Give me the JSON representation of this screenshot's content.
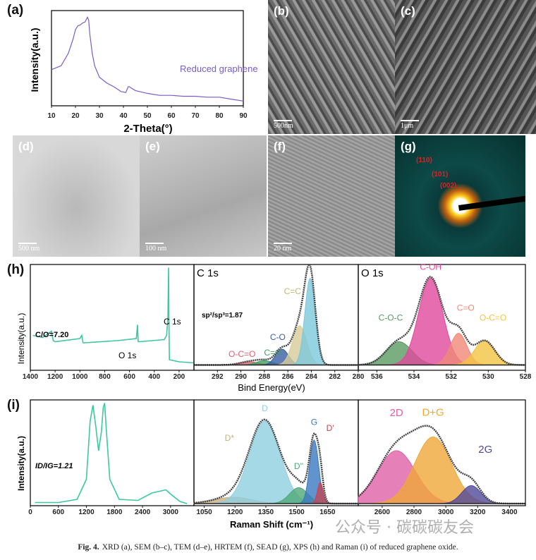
{
  "panels": {
    "a": "(a)",
    "b": "(b)",
    "c": "(c)",
    "d": "(d)",
    "e": "(e)",
    "f": "(f)",
    "g": "(g)",
    "h": "(h)",
    "i": "(i)"
  },
  "scale_bars": {
    "b": "500nm",
    "c": "1μm",
    "d": "500 nm",
    "e": "100 nm",
    "f": "20 nm"
  },
  "saed_labels": [
    "(110)",
    "(101)",
    "(002)"
  ],
  "xps_labels": {
    "c_o_ratio": "C/O=7.20",
    "o1s": "O 1s",
    "c1s": "C 1s",
    "c1s_title": "C 1s",
    "sp_ratio": "sp²/sp³=1.87",
    "o1s_title": "O 1s"
  },
  "raman_labels": {
    "id_ig": "ID/IG=1.21"
  },
  "caption": {
    "label": "Fig. 4.",
    "text": "XRD (a), SEM (b–c), TEM (d–e), HRTEM (f), SEAD (g), XPS (h) and Raman (i) of reduced graphene oxide."
  },
  "watermark": "公众号 · 碳碳碳友会",
  "chart_data": [
    {
      "id": "xrd",
      "type": "line",
      "title": "",
      "xlabel": "2-Theta(°)",
      "ylabel": "Intensity(a.u.)",
      "xlim": [
        10,
        90
      ],
      "ylim": [
        0,
        1
      ],
      "xticks": [
        10,
        20,
        30,
        40,
        50,
        60,
        70,
        80,
        90
      ],
      "legend": "Reduced graphene oxide",
      "color": "#7a5cc8",
      "x": [
        10,
        14,
        17,
        19,
        20,
        21,
        22,
        23,
        24,
        25,
        25.5,
        26,
        27,
        28,
        30,
        33,
        36,
        39,
        41,
        42,
        42.5,
        43,
        45,
        50,
        55,
        60,
        65,
        70,
        75,
        80,
        85,
        90
      ],
      "y": [
        0.38,
        0.42,
        0.55,
        0.7,
        0.8,
        0.84,
        0.85,
        0.87,
        0.88,
        0.93,
        0.9,
        0.75,
        0.55,
        0.42,
        0.3,
        0.24,
        0.2,
        0.15,
        0.14,
        0.2,
        0.2,
        0.19,
        0.16,
        0.13,
        0.11,
        0.11,
        0.1,
        0.1,
        0.09,
        0.09,
        0.07,
        0.05
      ]
    },
    {
      "id": "xps_survey",
      "type": "line",
      "xlabel": "Bind Energy(eV)",
      "ylabel": "Intensity(a.u.)",
      "xlim": [
        1400,
        80
      ],
      "ylim": [
        0,
        1
      ],
      "xticks": [
        1400,
        1200,
        1000,
        800,
        600,
        400,
        200
      ],
      "color": "#3cc8a0",
      "x": [
        1380,
        1300,
        1230,
        1215,
        1200,
        1000,
        985,
        975,
        960,
        700,
        545,
        535,
        530,
        520,
        320,
        300,
        290,
        285,
        282,
        278,
        200,
        80
      ],
      "y": [
        0.33,
        0.31,
        0.37,
        0.28,
        0.27,
        0.3,
        0.33,
        0.26,
        0.26,
        0.28,
        0.3,
        0.43,
        0.27,
        0.27,
        0.29,
        0.33,
        0.5,
        0.97,
        0.5,
        0.1,
        0.08,
        0.07
      ]
    },
    {
      "id": "xps_c1s",
      "type": "area",
      "xlim": [
        294,
        280
      ],
      "ylim": [
        0,
        1
      ],
      "xticks": [
        294,
        292,
        290,
        288,
        286,
        284,
        282,
        280
      ],
      "baseline": 0.05,
      "peaks": [
        {
          "name": "O-C=O",
          "center": 289.3,
          "height": 0.03,
          "width": 0.8,
          "color": "#e06070"
        },
        {
          "name": "C=O",
          "center": 288,
          "height": 0.04,
          "width": 0.7,
          "color": "#40a060"
        },
        {
          "name": "C-O",
          "center": 286.5,
          "height": 0.15,
          "width": 0.55,
          "color": "#3a5ea8"
        },
        {
          "name": "C=C",
          "center": 285,
          "height": 0.37,
          "width": 0.6,
          "color": "#d8cc98"
        },
        {
          "name": "C=C",
          "center": 284.1,
          "height": 0.82,
          "width": 0.45,
          "color": "#7cc8dc"
        }
      ]
    },
    {
      "id": "xps_o1s",
      "type": "area",
      "xlim": [
        537,
        528
      ],
      "ylim": [
        0,
        1
      ],
      "xticks": [
        536,
        534,
        532,
        530,
        528
      ],
      "baseline": 0.05,
      "peaks": [
        {
          "name": "C-O-C",
          "center": 534.8,
          "height": 0.22,
          "width": 0.7,
          "color": "#5a9a60"
        },
        {
          "name": "C-OH",
          "center": 533.1,
          "height": 0.82,
          "width": 0.65,
          "color": "#e0489c"
        },
        {
          "name": "C=O",
          "center": 531.6,
          "height": 0.3,
          "width": 0.45,
          "color": "#f08878"
        },
        {
          "name": "O-C=O",
          "center": 530.2,
          "height": 0.23,
          "width": 0.55,
          "color": "#f2c444"
        }
      ]
    },
    {
      "id": "raman_full",
      "type": "line",
      "xlabel": "Raman Shift (cm⁻¹)",
      "ylabel": "Intensity(a.u.)",
      "xlim": [
        0,
        3500
      ],
      "ylim": [
        0,
        1
      ],
      "xticks": [
        0,
        600,
        1200,
        1800,
        2400,
        3000
      ],
      "color": "#3cc8a0",
      "x": [
        100,
        600,
        1000,
        1200,
        1280,
        1340,
        1400,
        1460,
        1520,
        1560,
        1590,
        1620,
        1700,
        1900,
        2300,
        2600,
        2800,
        2900,
        3000,
        3200,
        3350
      ],
      "y": [
        0.03,
        0.03,
        0.06,
        0.25,
        0.8,
        0.95,
        0.75,
        0.52,
        0.7,
        0.93,
        0.97,
        0.75,
        0.25,
        0.06,
        0.05,
        0.12,
        0.14,
        0.15,
        0.11,
        0.04,
        0.02
      ]
    },
    {
      "id": "raman_first",
      "type": "area",
      "xlim": [
        1000,
        1800
      ],
      "ylim": [
        0,
        1
      ],
      "xticks": [
        1050,
        1200,
        1350,
        1500,
        1650,
        1800
      ],
      "baseline": 0.02,
      "peaks": [
        {
          "name": "D*",
          "center": 1190,
          "height": 0.06,
          "width": 90,
          "color": "#c8b080"
        },
        {
          "name": "D",
          "center": 1345,
          "height": 0.78,
          "width": 75,
          "color": "#8fcfe0"
        },
        {
          "name": "D''",
          "center": 1510,
          "height": 0.15,
          "width": 45,
          "color": "#50a878"
        },
        {
          "name": "G",
          "center": 1585,
          "height": 0.6,
          "width": 22,
          "color": "#3a78c0"
        },
        {
          "name": "D'",
          "center": 1615,
          "height": 0.2,
          "width": 14,
          "color": "#c04858"
        }
      ]
    },
    {
      "id": "raman_second",
      "type": "area",
      "xlim": [
        2450,
        3500
      ],
      "ylim": [
        0,
        1
      ],
      "xticks": [
        2600,
        2800,
        3000,
        3200,
        3400
      ],
      "baseline": 0.02,
      "peaks": [
        {
          "name": "2D",
          "center": 2690,
          "height": 0.5,
          "width": 120,
          "color": "#e060a8"
        },
        {
          "name": "D+G",
          "center": 2920,
          "height": 0.63,
          "width": 115,
          "color": "#f0a838"
        },
        {
          "name": "2G",
          "center": 3160,
          "height": 0.17,
          "width": 60,
          "color": "#504898"
        }
      ]
    }
  ]
}
